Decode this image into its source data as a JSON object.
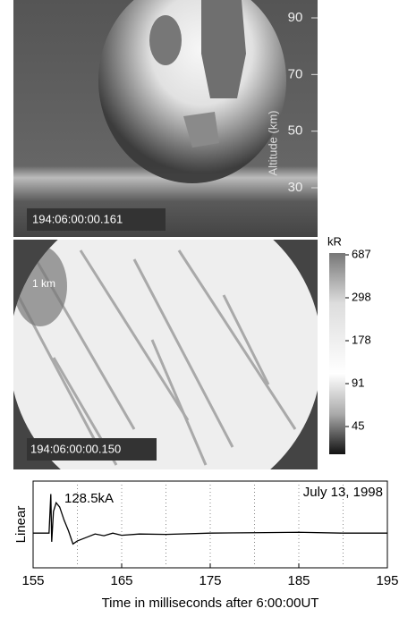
{
  "sprite_image": {
    "altitude_label": "Altitude (km)",
    "altitude_ticks": [
      90,
      70,
      50,
      30
    ],
    "timestamp": "194:06:00:00.161"
  },
  "telescope_image": {
    "scale_label": "1 km",
    "timestamp": "194:06:00:00.150"
  },
  "colorbar": {
    "unit": "kR",
    "ticks": [
      687,
      298,
      178,
      91,
      45
    ]
  },
  "chart_data": {
    "type": "line",
    "y_label": "Linear",
    "x_label": "Time in milliseconds after 6:00:00UT",
    "annotations": [
      "128.5kA",
      "July 13, 1998"
    ],
    "x": [
      155,
      156.8,
      157.0,
      157.1,
      157.3,
      157.6,
      158,
      158.5,
      159,
      159.5,
      160,
      161,
      162,
      163,
      164,
      165,
      167,
      170,
      175,
      180,
      185,
      190,
      195
    ],
    "series": [
      {
        "color": "#000000",
        "values": [
          0,
          0,
          0.9,
          -0.2,
          0.5,
          0.7,
          0.6,
          0.3,
          0.05,
          -0.25,
          -0.18,
          -0.1,
          -0.02,
          -0.06,
          0,
          -0.05,
          -0.02,
          -0.03,
          0,
          0.01,
          0.02,
          0,
          0
        ]
      }
    ],
    "xlim": [
      155,
      195
    ],
    "ylim": [
      -0.8,
      1.2
    ],
    "xticks": [
      155,
      165,
      175,
      185,
      195
    ],
    "minor_xticks": [
      160,
      165,
      170,
      175,
      180,
      185,
      190
    ],
    "grid": true
  }
}
